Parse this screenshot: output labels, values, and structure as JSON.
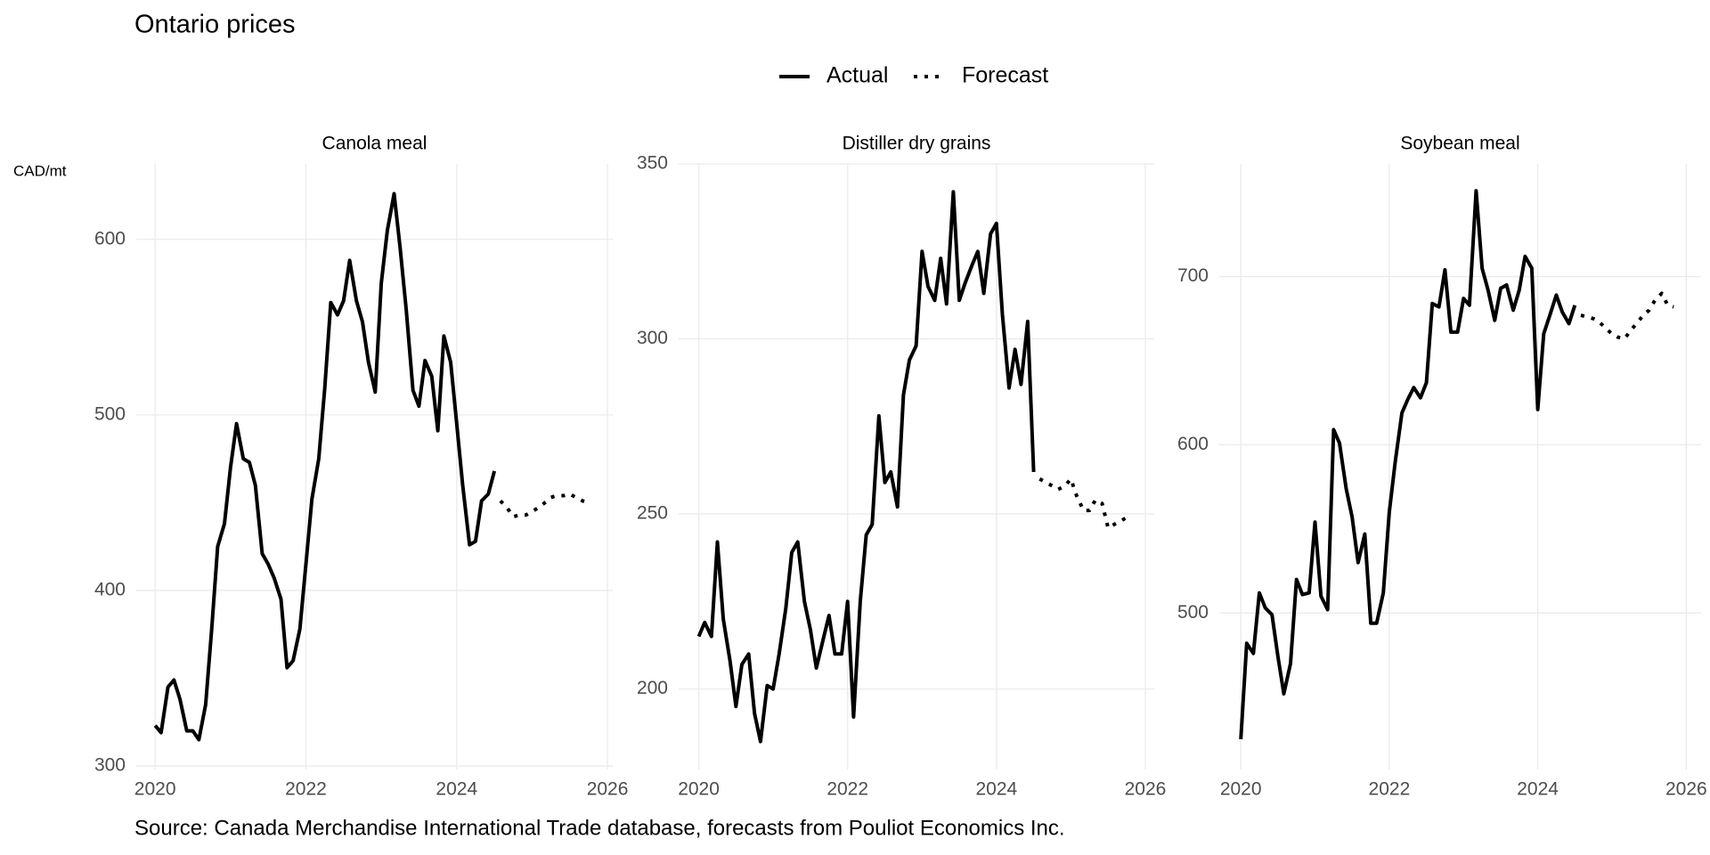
{
  "title": "Ontario prices",
  "y_label": "CAD/mt",
  "source": "Source: Canada Merchandise International Trade database, forecasts from Pouliot Economics Inc.",
  "chart_data": [
    {
      "type": "line",
      "title": "Canola meal",
      "xlim": [
        2019.75,
        2026.07
      ],
      "xticks": [
        2020,
        2022,
        2024,
        2026
      ],
      "ylim": [
        298,
        643
      ],
      "yticks": [
        300,
        400,
        500,
        600
      ],
      "grid": true,
      "series": [
        {
          "name": "Actual",
          "color": "#000000",
          "dash": "solid",
          "x": [
            2020,
            2020.08,
            2020.17,
            2020.25,
            2020.33,
            2020.42,
            2020.5,
            2020.58,
            2020.67,
            2020.75,
            2020.83,
            2020.92,
            2021,
            2021.08,
            2021.17,
            2021.25,
            2021.33,
            2021.42,
            2021.5,
            2021.58,
            2021.67,
            2021.75,
            2021.83,
            2021.92,
            2022,
            2022.08,
            2022.17,
            2022.25,
            2022.33,
            2022.42,
            2022.5,
            2022.58,
            2022.67,
            2022.75,
            2022.83,
            2022.92,
            2023,
            2023.08,
            2023.17,
            2023.25,
            2023.33,
            2023.42,
            2023.5,
            2023.58,
            2023.67,
            2023.75,
            2023.83,
            2023.92,
            2024,
            2024.08,
            2024.17,
            2024.25,
            2024.33,
            2024.42,
            2024.5
          ],
          "values": [
            323,
            319,
            345,
            349,
            338,
            320,
            320,
            315,
            335,
            378,
            425,
            438,
            470,
            495,
            475,
            473,
            460,
            421,
            415,
            407,
            395,
            356,
            360,
            378,
            415,
            452,
            475,
            515,
            564,
            557,
            565,
            588,
            565,
            553,
            530,
            513,
            575,
            605,
            626,
            595,
            560,
            514,
            505,
            531,
            522,
            491,
            545,
            530,
            495,
            460,
            426,
            428,
            451,
            455,
            468
          ]
        },
        {
          "name": "Forecast",
          "color": "#000000",
          "dash": "dotted",
          "x": [
            2024.58,
            2024.67,
            2024.75,
            2024.83,
            2024.92,
            2025,
            2025.08,
            2025.17,
            2025.25,
            2025.33,
            2025.42,
            2025.5,
            2025.58,
            2025.67,
            2025.75
          ],
          "values": [
            451,
            447,
            442,
            443,
            443,
            445,
            447,
            450,
            453,
            454,
            454,
            455,
            453,
            451,
            450
          ]
        }
      ]
    },
    {
      "type": "line",
      "title": "Distiller dry grains",
      "xlim": [
        2019.73,
        2026.12
      ],
      "xticks": [
        2020,
        2022,
        2024,
        2026
      ],
      "ylim": [
        177,
        350
      ],
      "yticks": [
        200,
        250,
        300,
        350
      ],
      "grid": true,
      "series": [
        {
          "name": "Actual",
          "color": "#000000",
          "dash": "solid",
          "x": [
            2020,
            2020.08,
            2020.17,
            2020.25,
            2020.33,
            2020.42,
            2020.5,
            2020.58,
            2020.67,
            2020.75,
            2020.83,
            2020.92,
            2021,
            2021.08,
            2021.17,
            2021.25,
            2021.33,
            2021.42,
            2021.5,
            2021.58,
            2021.67,
            2021.75,
            2021.83,
            2021.92,
            2022,
            2022.08,
            2022.17,
            2022.25,
            2022.33,
            2022.42,
            2022.5,
            2022.58,
            2022.67,
            2022.75,
            2022.83,
            2022.92,
            2023,
            2023.08,
            2023.17,
            2023.25,
            2023.33,
            2023.42,
            2023.5,
            2023.58,
            2023.67,
            2023.75,
            2023.83,
            2023.92,
            2024,
            2024.08,
            2024.17,
            2024.25,
            2024.33,
            2024.42,
            2024.5
          ],
          "values": [
            215,
            219,
            215,
            242,
            220,
            208,
            195,
            207,
            210,
            193,
            185,
            201,
            200,
            210,
            223,
            239,
            242,
            225,
            217,
            206,
            214,
            221,
            210,
            210,
            225,
            192,
            225,
            244,
            247,
            278,
            259,
            262,
            252,
            284,
            294,
            298,
            325,
            315,
            311,
            323,
            310,
            342,
            311,
            316,
            321,
            325,
            313,
            330,
            333,
            307,
            286,
            297,
            287,
            305,
            262
          ]
        },
        {
          "name": "Forecast",
          "color": "#000000",
          "dash": "dotted",
          "x": [
            2024.58,
            2024.67,
            2024.75,
            2024.83,
            2024.92,
            2025,
            2025.08,
            2025.17,
            2025.25,
            2025.33,
            2025.42,
            2025.5,
            2025.58,
            2025.67,
            2025.75
          ],
          "values": [
            260,
            259,
            258,
            257,
            258,
            260,
            255,
            251,
            251,
            254,
            253,
            246,
            247,
            248,
            249
          ]
        }
      ]
    },
    {
      "type": "line",
      "title": "Soybean meal",
      "xlim": [
        2019.71,
        2026.2
      ],
      "xticks": [
        2020,
        2022,
        2024,
        2026
      ],
      "ylim": [
        407,
        767
      ],
      "yticks": [
        500,
        600,
        700
      ],
      "grid": true,
      "series": [
        {
          "name": "Actual",
          "color": "#000000",
          "dash": "solid",
          "x": [
            2020,
            2020.08,
            2020.17,
            2020.25,
            2020.33,
            2020.42,
            2020.5,
            2020.58,
            2020.67,
            2020.75,
            2020.83,
            2020.92,
            2021,
            2021.08,
            2021.17,
            2021.25,
            2021.33,
            2021.42,
            2021.5,
            2021.58,
            2021.67,
            2021.75,
            2021.83,
            2021.92,
            2022,
            2022.08,
            2022.17,
            2022.25,
            2022.33,
            2022.42,
            2022.5,
            2022.58,
            2022.67,
            2022.75,
            2022.83,
            2022.92,
            2023,
            2023.08,
            2023.17,
            2023.25,
            2023.33,
            2023.42,
            2023.5,
            2023.58,
            2023.67,
            2023.75,
            2023.83,
            2023.92,
            2024,
            2024.08,
            2024.17,
            2024.25,
            2024.33,
            2024.42,
            2024.5
          ],
          "values": [
            425,
            482,
            476,
            512,
            503,
            499,
            474,
            452,
            470,
            520,
            511,
            512,
            554,
            510,
            502,
            609,
            601,
            574,
            557,
            530,
            547,
            494,
            494,
            512,
            560,
            590,
            619,
            627,
            634,
            628,
            637,
            684,
            682,
            704,
            667,
            667,
            687,
            683,
            751,
            705,
            692,
            674,
            693,
            695,
            680,
            692,
            712,
            705,
            621,
            666,
            678,
            689,
            679,
            672,
            683
          ]
        },
        {
          "name": "Forecast",
          "color": "#000000",
          "dash": "dotted",
          "x": [
            2024.58,
            2024.67,
            2024.75,
            2024.83,
            2024.92,
            2025,
            2025.08,
            2025.17,
            2025.25,
            2025.33,
            2025.42,
            2025.5,
            2025.58,
            2025.67,
            2025.75,
            2025.83
          ],
          "values": [
            677,
            676,
            675,
            673,
            669,
            666,
            664,
            663,
            668,
            672,
            677,
            680,
            686,
            690,
            683,
            682
          ]
        }
      ]
    }
  ]
}
